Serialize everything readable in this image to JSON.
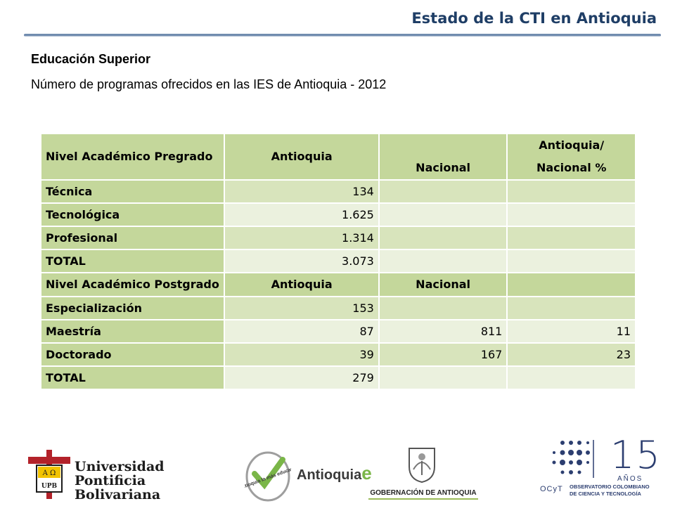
{
  "header": {
    "title": "Estado de la CTI en Antioquia"
  },
  "section": {
    "heading": "Educación Superior",
    "subtitle": "Número de programas ofrecidos en las IES de Antioquia - 2012"
  },
  "table": {
    "pregrado_header": [
      "Nivel Académico Pregrado",
      "Antioquia",
      "Nacional",
      "Antioquia/ Nacional %"
    ],
    "pregrado_rows": [
      {
        "label": "Técnica",
        "antioquia": "134",
        "nacional": "",
        "pct": ""
      },
      {
        "label": "Tecnológica",
        "antioquia": "1.625",
        "nacional": "",
        "pct": ""
      },
      {
        "label": "Profesional",
        "antioquia": "1.314",
        "nacional": "",
        "pct": ""
      },
      {
        "label": "TOTAL",
        "antioquia": "3.073",
        "nacional": "",
        "pct": ""
      }
    ],
    "postgrado_header": [
      "Nivel Académico Postgrado",
      "Antioquia",
      "Nacional",
      ""
    ],
    "postgrado_rows": [
      {
        "label": "Especialización",
        "antioquia": "153",
        "nacional": "",
        "pct": ""
      },
      {
        "label": "Maestría",
        "antioquia": "87",
        "nacional": "811",
        "pct": "11"
      },
      {
        "label": "Doctorado",
        "antioquia": "39",
        "nacional": "167",
        "pct": "23"
      },
      {
        "label": "TOTAL",
        "antioquia": "279",
        "nacional": "",
        "pct": ""
      }
    ]
  },
  "logos": {
    "upb": {
      "line1": "Universidad",
      "line2": "Pontificia",
      "line3": "Bolivariana",
      "shield_top": "A Ω",
      "shield_bottom": "UPB"
    },
    "antioquia_educada": {
      "badge_text": "Antioquia la más educada",
      "word": "Antioquia",
      "accent": "e"
    },
    "gobernacion": {
      "text": "GOBERNACIÓN DE ANTIOQUIA"
    },
    "ocyt": {
      "number": "15",
      "anos": "AÑOS",
      "mark": "OCyT",
      "name_line1": "OBSERVATORIO COLOMBIANO",
      "name_line2": "DE CIENCIA Y TECNOLOGÍA"
    }
  },
  "colors": {
    "header_green": "#c4d79b",
    "row_dark": "#d8e4bc",
    "row_light": "#ebf1de",
    "title_blue": "#1f3e66"
  }
}
